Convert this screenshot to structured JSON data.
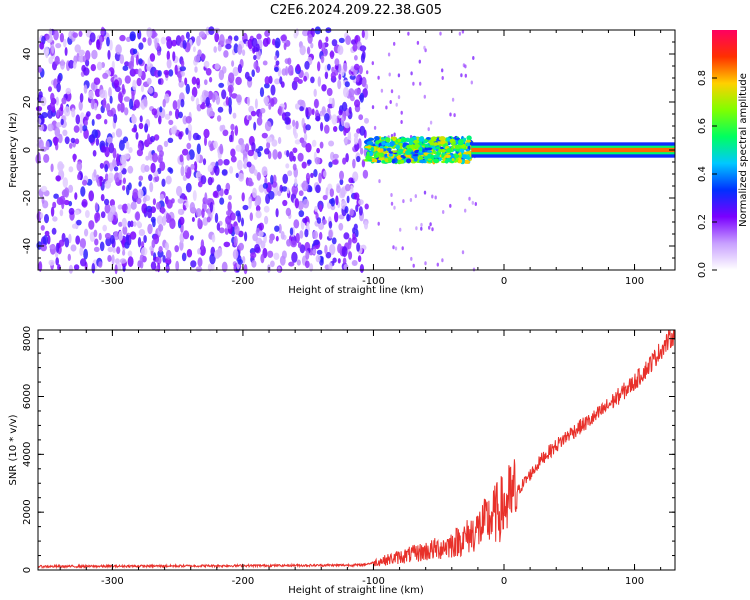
{
  "title": "C2E6.2024.209.22.38.G05",
  "chart_data": [
    {
      "type": "heatmap",
      "title": "C2E6.2024.209.22.38.G05",
      "xlabel": "Height of straight line (km)",
      "ylabel": "Frequency (Hz)",
      "xlim": [
        -357,
        131
      ],
      "ylim": [
        -50,
        50
      ],
      "xticks": [
        -300,
        -200,
        -100,
        0,
        100
      ],
      "yticks": [
        -40,
        -20,
        0,
        20,
        40
      ],
      "xtick_labels": [
        "-300",
        "-200",
        "-100",
        "0",
        "100"
      ],
      "ytick_labels": [
        "-40",
        "-20",
        "0",
        "20",
        "40"
      ],
      "colorbar": {
        "label": "Normalized spectral amplitude",
        "range": [
          0,
          1
        ],
        "ticks": [
          "0.0",
          "0.2",
          "0.4",
          "0.6",
          "0.8"
        ],
        "colors": [
          "#ffffff",
          "#c8a0ff",
          "#7a00ff",
          "#0030ff",
          "#00c8ff",
          "#00ff60",
          "#80ff00",
          "#ffd000",
          "#ff3000",
          "#ff0060"
        ]
      },
      "regions": [
        {
          "x_range": [
            -357,
            -105
          ],
          "freq_range": [
            -50,
            50
          ],
          "amplitude_range": [
            0.05,
            0.3
          ],
          "description_color": "purple noise"
        },
        {
          "x_range": [
            -105,
            -25
          ],
          "freq_center": 0,
          "freq_halfwidth": 5,
          "amplitude_range": [
            0.3,
            0.8
          ]
        },
        {
          "x_range": [
            -25,
            131
          ],
          "freq_center": 0,
          "freq_halfwidth": 2,
          "amplitude_peak": 1.0
        }
      ]
    },
    {
      "type": "line",
      "xlabel": "Height of straight line (km)",
      "ylabel": "SNR (10 * v/v)",
      "xlim": [
        -357,
        131
      ],
      "ylim": [
        0,
        8300
      ],
      "xticks": [
        -300,
        -200,
        -100,
        0,
        100
      ],
      "yticks": [
        0,
        2000,
        4000,
        6000,
        8000
      ],
      "xtick_labels": [
        "-300",
        "-200",
        "-100",
        "0",
        "100"
      ],
      "ytick_labels": [
        "0",
        "2000",
        "4000",
        "6000",
        "8000"
      ],
      "color": "#e8302a",
      "series": [
        {
          "x": [
            -357,
            -300,
            -250,
            -200,
            -150,
            -110,
            -100,
            -90,
            -80,
            -70,
            -60,
            -50,
            -40,
            -30,
            -20,
            -10,
            0,
            10,
            20,
            30,
            40,
            50,
            60,
            70,
            80,
            90,
            100,
            110,
            120,
            131
          ],
          "values": [
            120,
            130,
            140,
            150,
            160,
            170,
            250,
            350,
            450,
            550,
            650,
            750,
            900,
            1100,
            1400,
            1800,
            2200,
            2700,
            3300,
            3900,
            4300,
            4700,
            5000,
            5300,
            5700,
            6100,
            6500,
            7000,
            7600,
            8200
          ]
        }
      ]
    }
  ]
}
